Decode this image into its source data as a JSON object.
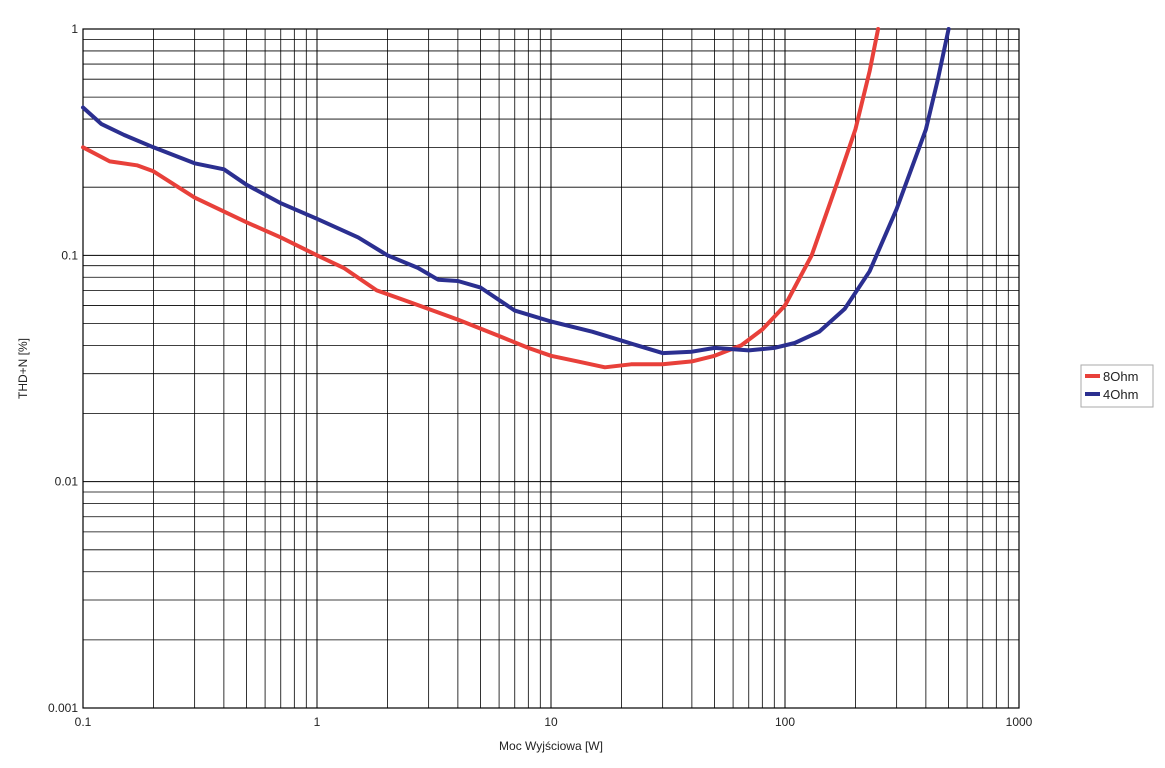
{
  "chart_data": {
    "type": "line",
    "title": "",
    "xlabel": "Moc Wyjściowa [W]",
    "ylabel": "THD+N [%]",
    "x_scale": "log",
    "y_scale": "log",
    "xlim": [
      0.1,
      1000
    ],
    "ylim": [
      0.001,
      1
    ],
    "grid": true,
    "legend_position": "right",
    "x_ticks": [
      {
        "value": 0.1,
        "label": "0.1"
      },
      {
        "value": 1,
        "label": "1"
      },
      {
        "value": 10,
        "label": "10"
      },
      {
        "value": 100,
        "label": "100"
      },
      {
        "value": 1000,
        "label": "1000"
      }
    ],
    "y_ticks": [
      {
        "value": 1,
        "label": "1"
      },
      {
        "value": 0.1,
        "label": "0.1"
      },
      {
        "value": 0.01,
        "label": "0.01"
      },
      {
        "value": 0.001,
        "label": "0.001"
      }
    ],
    "series": [
      {
        "name": "8Ohm",
        "color": "#e8403a",
        "points": [
          [
            0.1,
            0.3
          ],
          [
            0.13,
            0.26
          ],
          [
            0.17,
            0.25
          ],
          [
            0.2,
            0.235
          ],
          [
            0.3,
            0.18
          ],
          [
            0.5,
            0.14
          ],
          [
            0.7,
            0.12
          ],
          [
            1.0,
            0.1
          ],
          [
            1.3,
            0.088
          ],
          [
            1.8,
            0.07
          ],
          [
            2.5,
            0.062
          ],
          [
            4.0,
            0.052
          ],
          [
            6.0,
            0.044
          ],
          [
            8.0,
            0.039
          ],
          [
            10,
            0.036
          ],
          [
            13,
            0.034
          ],
          [
            17,
            0.032
          ],
          [
            22,
            0.033
          ],
          [
            30,
            0.033
          ],
          [
            40,
            0.034
          ],
          [
            50,
            0.036
          ],
          [
            65,
            0.04
          ],
          [
            80,
            0.047
          ],
          [
            100,
            0.06
          ],
          [
            130,
            0.1
          ],
          [
            170,
            0.22
          ],
          [
            200,
            0.36
          ],
          [
            230,
            0.65
          ],
          [
            250,
            1.0
          ]
        ]
      },
      {
        "name": "4Ohm",
        "color": "#2b2f90",
        "points": [
          [
            0.1,
            0.45
          ],
          [
            0.12,
            0.38
          ],
          [
            0.15,
            0.34
          ],
          [
            0.2,
            0.3
          ],
          [
            0.3,
            0.255
          ],
          [
            0.4,
            0.24
          ],
          [
            0.5,
            0.205
          ],
          [
            0.7,
            0.17
          ],
          [
            1.0,
            0.145
          ],
          [
            1.5,
            0.12
          ],
          [
            2.0,
            0.1
          ],
          [
            2.7,
            0.088
          ],
          [
            3.3,
            0.078
          ],
          [
            4.0,
            0.077
          ],
          [
            5.0,
            0.072
          ],
          [
            7.0,
            0.057
          ],
          [
            10,
            0.051
          ],
          [
            15,
            0.046
          ],
          [
            20,
            0.042
          ],
          [
            30,
            0.037
          ],
          [
            40,
            0.0375
          ],
          [
            50,
            0.039
          ],
          [
            70,
            0.038
          ],
          [
            90,
            0.039
          ],
          [
            110,
            0.041
          ],
          [
            140,
            0.046
          ],
          [
            180,
            0.058
          ],
          [
            230,
            0.085
          ],
          [
            300,
            0.16
          ],
          [
            400,
            0.36
          ],
          [
            450,
            0.6
          ],
          [
            500,
            1.0
          ]
        ]
      }
    ]
  }
}
